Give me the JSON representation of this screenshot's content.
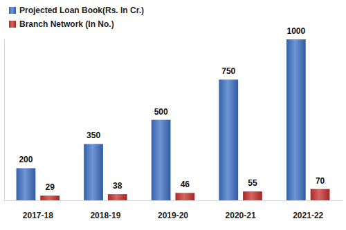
{
  "chart_data": {
    "type": "bar",
    "categories": [
      "2017-18",
      "2018-19",
      "2019-20",
      "2020-21",
      "2021-22"
    ],
    "series": [
      {
        "name": "Projected Loan Book(Rs. In Cr.)",
        "color": "#3f73c8",
        "values": [
          200,
          350,
          500,
          750,
          1000
        ]
      },
      {
        "name": "Branch Network (In No.)",
        "color": "#c9302c",
        "values": [
          29,
          38,
          46,
          55,
          70
        ]
      }
    ],
    "ylim": [
      0,
      1000
    ],
    "yticks": [],
    "grid": false,
    "legend": "top-left",
    "data_labels": true,
    "tick_labels": "x"
  }
}
